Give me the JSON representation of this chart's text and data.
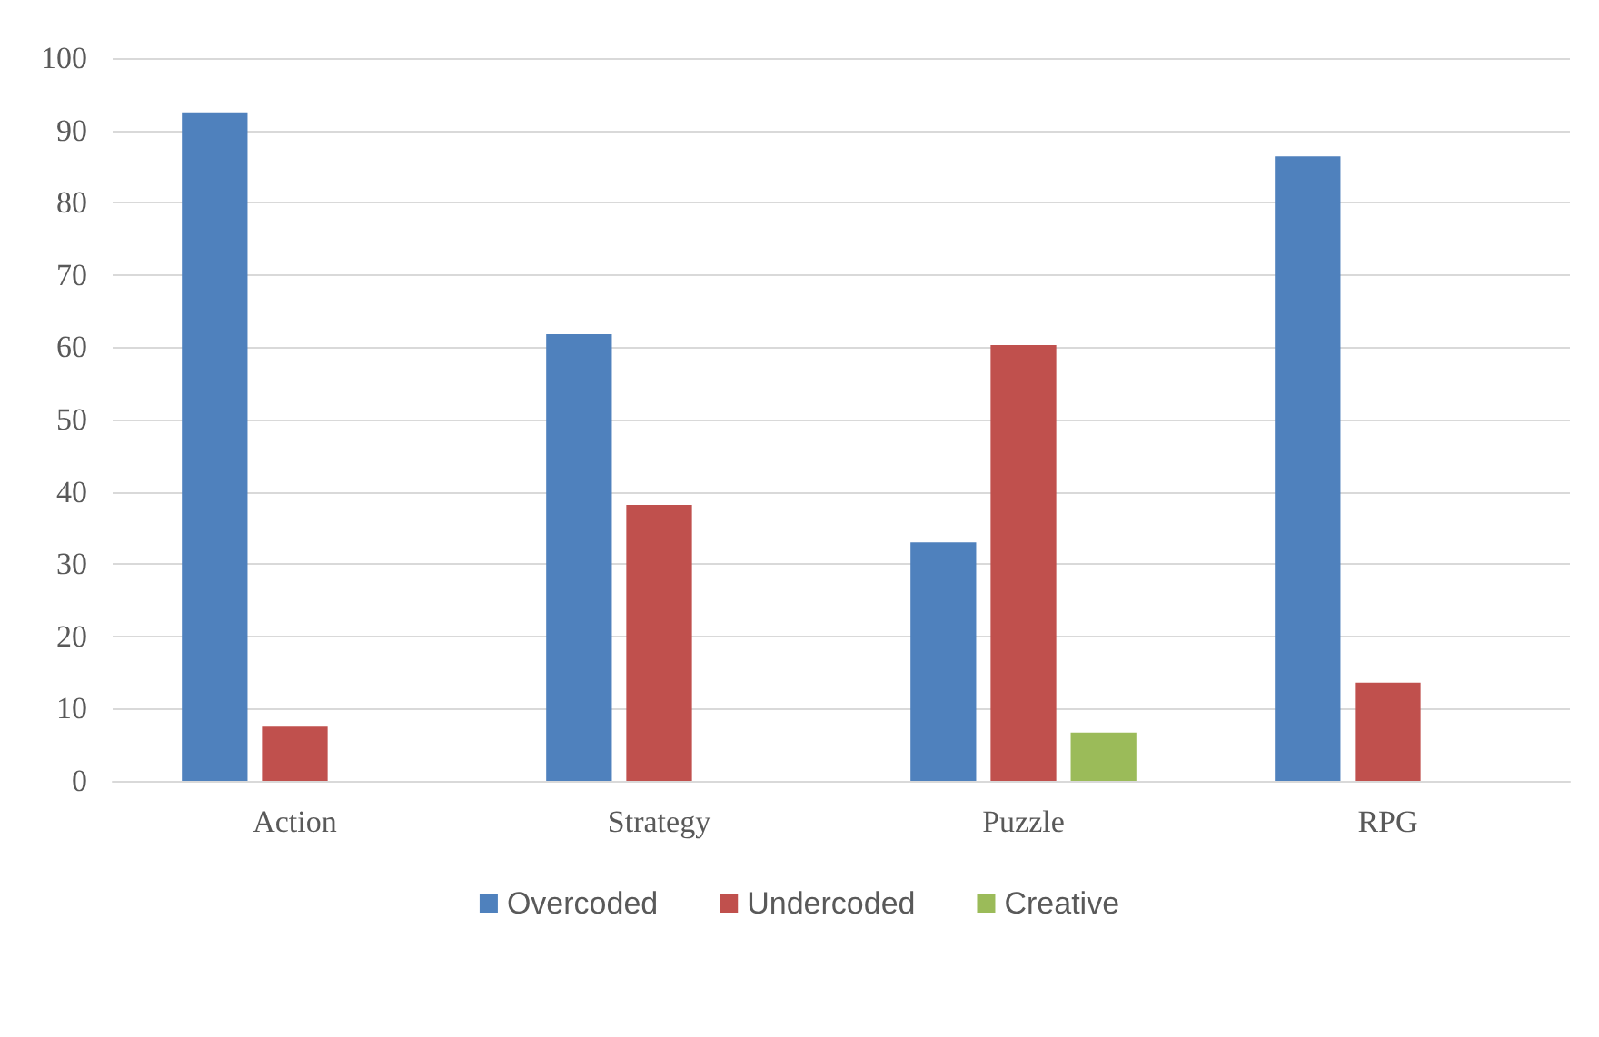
{
  "chart_data": {
    "type": "bar",
    "categories": [
      "Action",
      "Strategy",
      "Puzzle",
      "RPG"
    ],
    "series": [
      {
        "name": "Overcoded",
        "color": "#4f81bd",
        "values": [
          92.5,
          61.8,
          33,
          86.4
        ]
      },
      {
        "name": "Undercoded",
        "color": "#c0504d",
        "values": [
          7.5,
          38.2,
          60.3,
          13.6
        ]
      },
      {
        "name": "Creative",
        "color": "#9bbb59",
        "values": [
          null,
          null,
          6.7,
          null
        ]
      }
    ],
    "ylim": [
      0,
      100
    ],
    "yticks": [
      0,
      10,
      20,
      30,
      40,
      50,
      60,
      70,
      80,
      90,
      100
    ],
    "grid": "y",
    "legend": "bottom"
  }
}
